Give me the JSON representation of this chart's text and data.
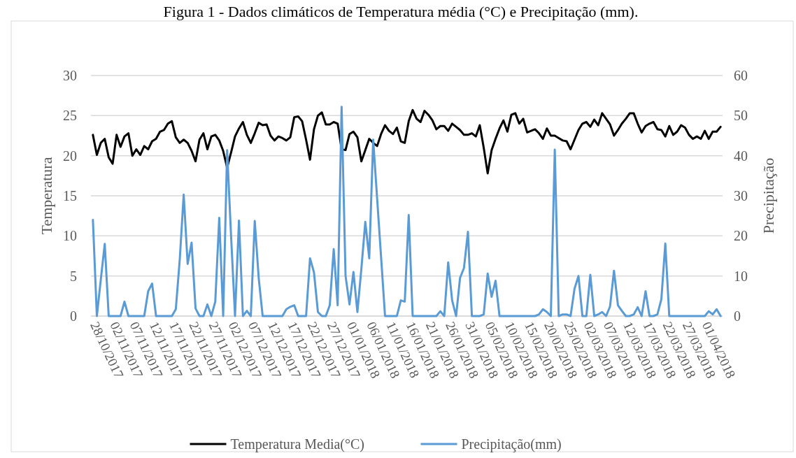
{
  "chart_data": {
    "type": "line",
    "title": "Figura 1 - Dados climáticos de Temperatura média (°C) e Precipitação (mm).",
    "ylabel": "Temperatura",
    "y2label": "Precipitação",
    "categories": [
      "28/10/2017",
      null,
      null,
      null,
      null,
      "02/11/2017",
      null,
      null,
      null,
      null,
      "07/11/2017",
      null,
      null,
      null,
      null,
      "12/11/2017",
      null,
      null,
      null,
      null,
      "17/11/2017",
      null,
      null,
      null,
      null,
      "22/11/2017",
      null,
      null,
      null,
      null,
      "27/11/2017",
      null,
      null,
      null,
      null,
      "02/12/2017",
      null,
      null,
      null,
      null,
      "07/12/2017",
      null,
      null,
      null,
      null,
      "12/12/2017",
      null,
      null,
      null,
      null,
      "17/12/2017",
      null,
      null,
      null,
      null,
      "22/12/2017",
      null,
      null,
      null,
      null,
      "27/12/2017",
      null,
      null,
      null,
      null,
      "01/01/2018",
      null,
      null,
      null,
      null,
      "06/01/2018",
      null,
      null,
      null,
      null,
      "11/01/2018",
      null,
      null,
      null,
      null,
      "16/01/2018",
      null,
      null,
      null,
      null,
      "21/01/2018",
      null,
      null,
      null,
      null,
      "26/01/2018",
      null,
      null,
      null,
      null,
      "31/01/2018",
      null,
      null,
      null,
      null,
      "05/02/2018",
      null,
      null,
      null,
      null,
      "10/02/2018",
      null,
      null,
      null,
      null,
      "15/02/2018",
      null,
      null,
      null,
      null,
      "20/02/2018",
      null,
      null,
      null,
      null,
      "25/02/2018",
      null,
      null,
      null,
      null,
      "02/03/2018",
      null,
      null,
      null,
      null,
      "07/03/2018",
      null,
      null,
      null,
      null,
      "12/03/2018",
      null,
      null,
      null,
      null,
      "17/03/2018",
      null,
      null,
      null,
      null,
      "22/03/2018",
      null,
      null,
      null,
      null,
      "27/03/2018",
      null,
      null,
      null,
      null,
      "01/04/2018",
      null,
      null,
      null,
      null
    ],
    "series": [
      {
        "name": "Temperatura Media(°C)",
        "color": "#000000",
        "values": [
          22.6,
          20.1,
          21.6,
          22.1,
          19.8,
          19.0,
          22.6,
          21.1,
          22.4,
          22.8,
          20.0,
          20.8,
          20.1,
          21.2,
          20.8,
          21.8,
          22.1,
          23.0,
          23.2,
          24.0,
          24.3,
          22.3,
          21.6,
          22.0,
          21.6,
          20.6,
          19.3,
          22.0,
          22.8,
          20.8,
          22.4,
          22.6,
          21.9,
          20.6,
          18.5,
          20.4,
          22.4,
          23.4,
          24.2,
          22.6,
          21.6,
          22.8,
          24.1,
          23.8,
          23.9,
          22.5,
          21.9,
          22.4,
          22.2,
          21.9,
          22.3,
          24.8,
          24.9,
          24.3,
          22.0,
          19.5,
          23.3,
          25.0,
          25.4,
          23.9,
          23.9,
          24.2,
          24.0,
          20.8,
          20.7,
          22.7,
          23.0,
          22.3,
          19.3,
          20.7,
          22.1,
          21.6,
          21.2,
          22.7,
          23.8,
          23.1,
          22.7,
          23.5,
          21.8,
          21.6,
          24.3,
          25.7,
          24.6,
          24.2,
          25.6,
          25.1,
          24.4,
          23.3,
          23.7,
          23.7,
          23.1,
          24.0,
          23.6,
          23.2,
          22.6,
          22.6,
          22.8,
          22.4,
          23.8,
          21.0,
          17.8,
          20.7,
          22.1,
          23.4,
          24.4,
          23.0,
          25.1,
          25.3,
          24.0,
          24.6,
          22.9,
          23.1,
          23.3,
          22.8,
          22.1,
          23.4,
          22.5,
          22.5,
          22.2,
          21.9,
          21.8,
          20.8,
          22.0,
          23.2,
          24.0,
          24.2,
          23.6,
          24.5,
          23.8,
          25.3,
          24.6,
          23.9,
          22.5,
          23.2,
          24.0,
          24.6,
          25.3,
          25.3,
          24.0,
          22.9,
          23.7,
          24.0,
          24.2,
          23.3,
          23.2,
          22.4,
          23.7,
          22.6,
          23.0,
          23.8,
          23.5,
          22.6,
          22.1,
          22.4,
          22.1,
          23.1,
          22.1,
          23.0,
          23.0,
          23.6
        ]
      },
      {
        "name": "Precipitação(mm)",
        "color": "#5b9bd5",
        "axis": "y2",
        "values": [
          24.0,
          0,
          9.1,
          18.0,
          0,
          0,
          0,
          0,
          3.6,
          0,
          0,
          0,
          0,
          0,
          6.2,
          8.1,
          0,
          0,
          0,
          0,
          0,
          1.7,
          14.1,
          30.3,
          13.0,
          18.3,
          1.9,
          0,
          0,
          2.9,
          0,
          3.6,
          24.5,
          0,
          41.4,
          20.0,
          0,
          23.8,
          0,
          1.3,
          0,
          23.7,
          9.5,
          0,
          0,
          0,
          0,
          0,
          0,
          1.7,
          2.3,
          2.7,
          0,
          0,
          0,
          14.4,
          10.9,
          1.0,
          0,
          0,
          2.7,
          16.7,
          2.7,
          52.2,
          10.0,
          2.9,
          11.0,
          1.0,
          11.7,
          23.5,
          14.4,
          44.0,
          29.3,
          14.7,
          0,
          0,
          0,
          0,
          3.9,
          3.6,
          25.2,
          0,
          0,
          0,
          0,
          0,
          0,
          0,
          1.2,
          0,
          13.4,
          3.9,
          0,
          9.5,
          12.0,
          21.0,
          0,
          0,
          0,
          0.4,
          10.6,
          4.8,
          8.8,
          0,
          0,
          0,
          0,
          0,
          0,
          0,
          0,
          0,
          0,
          0.4,
          1.7,
          1.0,
          0,
          41.5,
          0,
          0.4,
          0.4,
          0,
          6.8,
          10.0,
          0,
          0,
          10.3,
          0,
          0.4,
          1.0,
          0,
          2.4,
          11.3,
          2.7,
          1.3,
          0,
          0,
          0.4,
          2.2,
          0,
          6.2,
          0,
          0,
          0.4,
          4.2,
          18.1,
          0,
          0,
          0,
          0,
          0,
          0,
          0,
          0,
          0,
          0,
          1.2,
          0.4,
          1.7,
          0
        ]
      }
    ],
    "ylim": [
      0,
      30
    ],
    "yticks": [
      0,
      5,
      10,
      15,
      20,
      25,
      30
    ],
    "y2lim": [
      0,
      60
    ],
    "y2ticks": [
      0,
      10,
      20,
      30,
      40,
      50,
      60
    ],
    "grid": "y",
    "legend": "bottom",
    "marker": "none",
    "line_style": "solid"
  }
}
